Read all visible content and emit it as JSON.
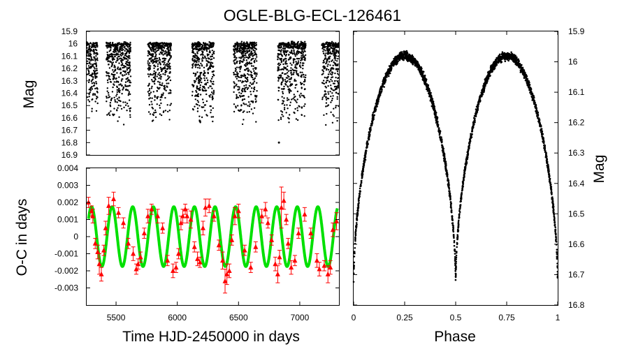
{
  "title": "OGLE-BLG-ECL-126461",
  "colors": {
    "data": "#000000",
    "oc_points": "#ff0000",
    "oc_fit": "#00e000",
    "frame": "#000000"
  },
  "chart_data": [
    {
      "id": "light-curve-time",
      "type": "scatter",
      "ylabel": "Mag",
      "xlim": [
        5260,
        7320
      ],
      "ylim": [
        16.9,
        15.9
      ],
      "y_inverted": true,
      "yticks": [
        15.9,
        16,
        16.1,
        16.2,
        16.3,
        16.4,
        16.5,
        16.6,
        16.7,
        16.8,
        16.9
      ],
      "ytick_labels": [
        "15.9",
        "16",
        "16.1",
        "16.2",
        "16.3",
        "16.4",
        "16.5",
        "16.6",
        "16.7",
        "16.8",
        "16.9"
      ],
      "mag_bright": 16.0,
      "mag_faint": 16.67,
      "observing_seasons": [
        [
          5260,
          5350
        ],
        [
          5420,
          5620
        ],
        [
          5760,
          5950
        ],
        [
          6120,
          6300
        ],
        [
          6460,
          6650
        ],
        [
          6820,
          7050
        ],
        [
          7180,
          7320
        ]
      ],
      "outliers": [
        {
          "x": 6830,
          "y": 16.8
        }
      ]
    },
    {
      "id": "o-c-diagram",
      "type": "scatter",
      "xlabel": "Time HJD-2450000 in days",
      "ylabel": "O-C in days",
      "xlim": [
        5260,
        7320
      ],
      "ylim": [
        -0.004,
        0.004
      ],
      "xticks": [
        5500,
        6000,
        6500,
        7000
      ],
      "xtick_labels": [
        "5500",
        "6000",
        "6500",
        "7000"
      ],
      "yticks": [
        -0.003,
        -0.002,
        -0.001,
        0,
        0.001,
        0.002,
        0.003,
        0.004
      ],
      "ytick_labels": [
        "-0.003",
        "-0.002",
        "-0.001",
        "0",
        "0.001",
        "0.002",
        "0.003",
        "0.004"
      ],
      "fit": {
        "name": "sinusoidal fit",
        "amplitude": 0.00175,
        "period": 168,
        "phase_zero": 5300
      },
      "series": [
        {
          "name": "O-C measurements",
          "x": [
            5275,
            5300,
            5310,
            5330,
            5350,
            5363,
            5380,
            5400,
            5415,
            5440,
            5480,
            5520,
            5560,
            5600,
            5640,
            5665,
            5680,
            5700,
            5730,
            5760,
            5790,
            5840,
            5880,
            5920,
            5965,
            5990,
            6010,
            6030,
            6045,
            6065,
            6080,
            6110,
            6140,
            6165,
            6185,
            6210,
            6230,
            6260,
            6300,
            6340,
            6370,
            6390,
            6405,
            6425,
            6445,
            6470,
            6500,
            6550,
            6600,
            6640,
            6690,
            6720,
            6740,
            6770,
            6800,
            6820,
            6835,
            6850,
            6870,
            6890,
            6905,
            6930,
            6960,
            6990,
            7040,
            7090,
            7140,
            7160,
            7200,
            7230,
            7250,
            7270,
            7300
          ],
          "y": [
            0.002,
            0.0015,
            0.0012,
            -0.0004,
            -0.0009,
            -0.0016,
            -0.0022,
            -0.0008,
            0.0005,
            0.0018,
            0.0022,
            0.0014,
            0.0008,
            -0.0004,
            -0.001,
            -0.0019,
            -0.0016,
            -0.0012,
            0.0002,
            0.0012,
            0.0016,
            0.0012,
            0.0005,
            -0.0014,
            -0.002,
            -0.0018,
            -0.001,
            0.0008,
            0.0012,
            0.0016,
            0.0012,
            0.001,
            -0.0006,
            -0.0013,
            -0.0015,
            0.0005,
            0.0017,
            0.0018,
            0.0012,
            -0.0005,
            -0.0014,
            -0.0026,
            -0.0022,
            -0.002,
            -0.0002,
            0.0012,
            0.0015,
            -0.0008,
            -0.0018,
            -0.0006,
            0.0012,
            0.0016,
            0.0008,
            -0.0002,
            -0.0016,
            -0.0022,
            -0.0012,
            0.0017,
            0.0021,
            0.001,
            -0.0004,
            -0.0018,
            -0.0014,
            0.0002,
            0.0013,
            0.0002,
            -0.0014,
            -0.0019,
            -0.0017,
            -0.0022,
            -0.0018,
            0.0004,
            0.0009
          ],
          "err": [
            0.0003,
            0.0003,
            0.0004,
            0.0003,
            0.0004,
            0.0006,
            0.0004,
            0.0003,
            0.0004,
            0.0005,
            0.0004,
            0.0003,
            0.0003,
            0.0003,
            0.0004,
            0.0003,
            0.0003,
            0.0003,
            0.0003,
            0.0004,
            0.0003,
            0.0004,
            0.0003,
            0.0003,
            0.0004,
            0.0003,
            0.0003,
            0.0004,
            0.0004,
            0.0003,
            0.0004,
            0.0005,
            0.0003,
            0.0004,
            0.0003,
            0.0004,
            0.0005,
            0.0004,
            0.0003,
            0.0003,
            0.0005,
            0.0007,
            0.0006,
            0.0004,
            0.0003,
            0.0005,
            0.0004,
            0.0003,
            0.0003,
            0.0003,
            0.0004,
            0.0004,
            0.0003,
            0.0003,
            0.0004,
            0.0005,
            0.0004,
            0.0012,
            0.0005,
            0.0003,
            0.0003,
            0.0004,
            0.0003,
            0.0003,
            0.0004,
            0.0003,
            0.0004,
            0.0004,
            0.0003,
            0.0005,
            0.0004,
            0.0004,
            0.0005
          ]
        }
      ]
    },
    {
      "id": "phased-light-curve",
      "type": "scatter",
      "xlabel": "Phase",
      "ylabel": "Mag",
      "xlim": [
        0,
        1
      ],
      "ylim": [
        16.8,
        15.9
      ],
      "y_inverted": true,
      "xticks": [
        0,
        0.25,
        0.5,
        0.75,
        1
      ],
      "xtick_labels": [
        "0",
        "0.25",
        "0.5",
        "0.75",
        "1"
      ],
      "yticks": [
        15.9,
        16,
        16.1,
        16.2,
        16.3,
        16.4,
        16.5,
        16.6,
        16.7,
        16.8
      ],
      "ytick_labels": [
        "15.9",
        "16",
        "16.1",
        "16.2",
        "16.3",
        "16.4",
        "16.5",
        "16.6",
        "16.7",
        "16.8"
      ],
      "mag_max_brightness": 15.98,
      "mag_min_brightness": 16.73,
      "primary_minimum_phase": 0.0,
      "secondary_minimum_phase": 0.5,
      "maxima_phases": [
        0.25,
        0.75
      ]
    }
  ]
}
